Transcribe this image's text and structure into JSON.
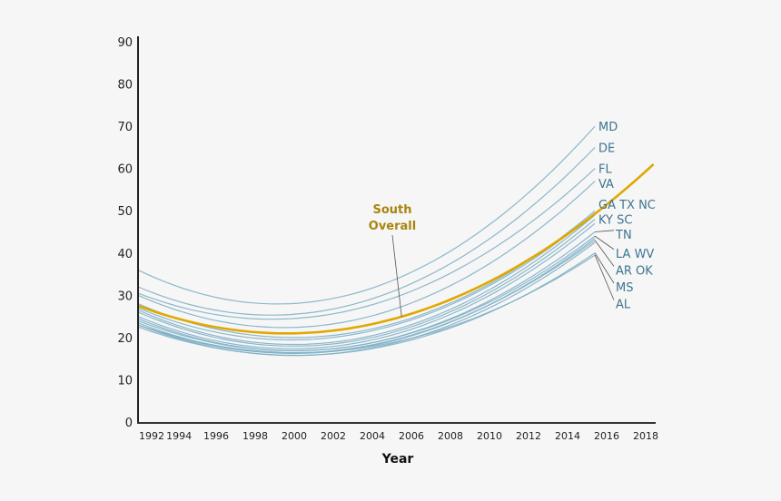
{
  "chart_data": {
    "type": "line",
    "title": "",
    "xlabel": "Year",
    "ylabel": "",
    "xlim": [
      1992,
      2018.5
    ],
    "ylim": [
      0,
      90
    ],
    "grid": false,
    "y_ticks": [
      0,
      10,
      20,
      30,
      40,
      50,
      60,
      70,
      80,
      90
    ],
    "x_ticks": [
      {
        "label": "1992",
        "value": 1992.7
      },
      {
        "label": "1994",
        "value": 1994.1
      },
      {
        "label": "1996",
        "value": 1996
      },
      {
        "label": "1998",
        "value": 1998
      },
      {
        "label": "2000",
        "value": 2000
      },
      {
        "label": "2002",
        "value": 2002
      },
      {
        "label": "2004",
        "value": 2004
      },
      {
        "label": "2006",
        "value": 2006
      },
      {
        "label": "2008",
        "value": 2008
      },
      {
        "label": "2010",
        "value": 2010
      },
      {
        "label": "2012",
        "value": 2012
      },
      {
        "label": "2014",
        "value": 2014
      },
      {
        "label": "2016",
        "value": 2016
      },
      {
        "label": "2018",
        "value": 2018
      }
    ],
    "colors": {
      "state": "#7fb0c6",
      "overall": "#e0a800",
      "label": "#3d7590",
      "annotation": "#a8850f",
      "leader": "#555555"
    },
    "overall": {
      "name": "South Overall",
      "label_lines": [
        "South",
        "Overall"
      ],
      "x": [
        1992,
        2000,
        2018.4
      ],
      "y": [
        27.5,
        21,
        61
      ]
    },
    "series": [
      {
        "name": "MD",
        "x": [
          1992,
          2001,
          2015.4
        ],
        "y": [
          36,
          28.5,
          70
        ]
      },
      {
        "name": "DE",
        "x": [
          1992,
          2000,
          2015.4
        ],
        "y": [
          32,
          25.5,
          65
        ]
      },
      {
        "name": "FL",
        "x": [
          1992,
          2000,
          2015.4
        ],
        "y": [
          30.5,
          24.5,
          60
        ]
      },
      {
        "name": "VA",
        "x": [
          1992,
          2000.5,
          2015.4
        ],
        "y": [
          30,
          22.5,
          57
        ]
      },
      {
        "name": "GA",
        "x": [
          1992,
          2000,
          2015.4
        ],
        "y": [
          28,
          20,
          50
        ]
      },
      {
        "name": "TX",
        "x": [
          1992,
          2000.5,
          2015.4
        ],
        "y": [
          27,
          19.5,
          49.5
        ]
      },
      {
        "name": "NC",
        "x": [
          1992,
          2001,
          2015.4
        ],
        "y": [
          26.5,
          18.5,
          49
        ]
      },
      {
        "name": "KY",
        "x": [
          1992,
          2000.5,
          2015.4
        ],
        "y": [
          26,
          18,
          48
        ]
      },
      {
        "name": "SC",
        "x": [
          1992,
          2001,
          2015.4
        ],
        "y": [
          25,
          17.5,
          47
        ]
      },
      {
        "name": "TN",
        "x": [
          1992,
          2001,
          2015.4
        ],
        "y": [
          24.5,
          17,
          45
        ]
      },
      {
        "name": "LA",
        "x": [
          1992,
          2001,
          2015.4
        ],
        "y": [
          24,
          17,
          44
        ]
      },
      {
        "name": "WV",
        "x": [
          1992,
          2001.5,
          2015.4
        ],
        "y": [
          23.5,
          16.5,
          43.5
        ]
      },
      {
        "name": "AR",
        "x": [
          1992,
          2001,
          2015.4
        ],
        "y": [
          23,
          16.5,
          43
        ]
      },
      {
        "name": "OK",
        "x": [
          1992,
          2001.5,
          2015.4
        ],
        "y": [
          23,
          16,
          42.5
        ]
      },
      {
        "name": "MS",
        "x": [
          1992,
          2001.5,
          2015.4
        ],
        "y": [
          22.5,
          16,
          40
        ]
      },
      {
        "name": "AL",
        "x": [
          1992,
          2001,
          2015.4
        ],
        "y": [
          23,
          16.5,
          39.5
        ]
      }
    ],
    "labels": [
      {
        "text": "MD",
        "series": [
          "MD"
        ],
        "label_y": 70,
        "leader": false
      },
      {
        "text": "DE",
        "series": [
          "DE"
        ],
        "label_y": 65,
        "leader": false
      },
      {
        "text": "FL",
        "series": [
          "FL"
        ],
        "label_y": 60,
        "leader": false
      },
      {
        "text": "VA",
        "series": [
          "VA"
        ],
        "label_y": 56.5,
        "leader": false
      },
      {
        "text": "GA TX NC",
        "series": [
          "GA",
          "TX",
          "NC"
        ],
        "label_y": 51.5,
        "leader": false
      },
      {
        "text": "KY SC",
        "series": [
          "KY",
          "SC"
        ],
        "label_y": 48,
        "leader": false
      },
      {
        "text": "TN",
        "series": [
          "TN"
        ],
        "label_y": 44.5,
        "leader": true
      },
      {
        "text": "LA WV",
        "series": [
          "LA",
          "WV"
        ],
        "label_y": 40,
        "leader": true
      },
      {
        "text": "AR OK",
        "series": [
          "AR",
          "OK"
        ],
        "label_y": 36,
        "leader": true
      },
      {
        "text": "MS",
        "series": [
          "MS"
        ],
        "label_y": 32,
        "leader": true
      },
      {
        "text": "AL",
        "series": [
          "AL"
        ],
        "label_y": 28,
        "leader": true
      }
    ],
    "annotation": {
      "text_lines": [
        "South",
        "Overall"
      ],
      "points_to_year": 2005.5
    }
  }
}
